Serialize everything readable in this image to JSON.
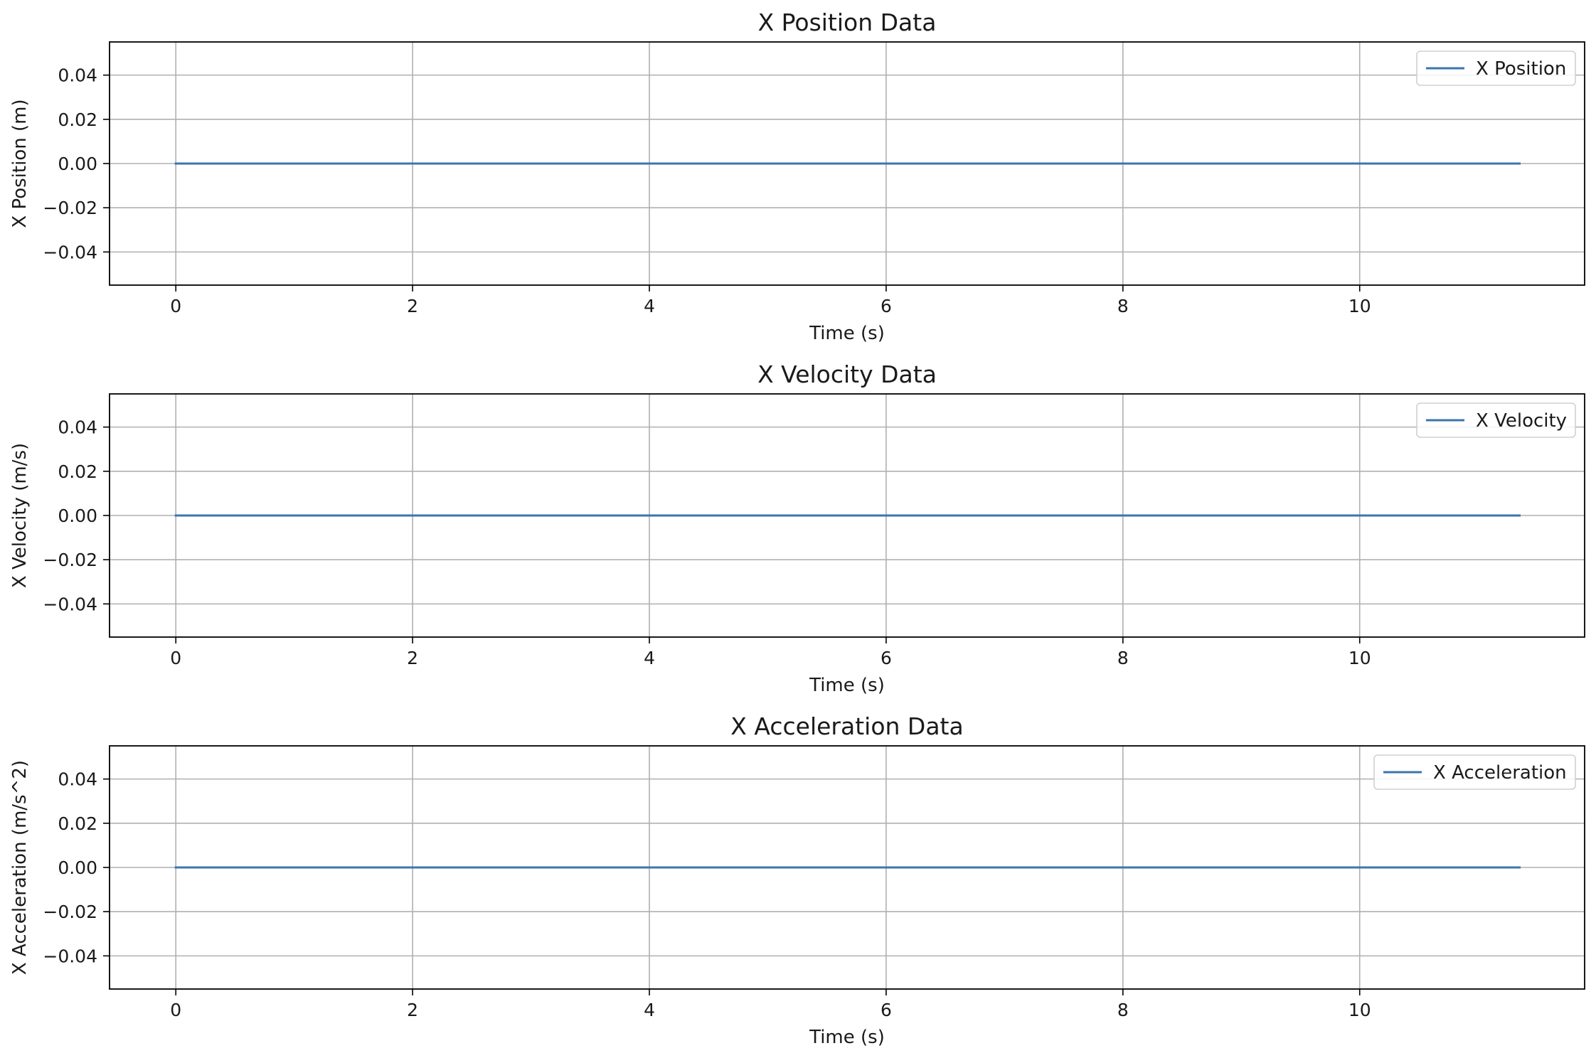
{
  "chart_data": [
    {
      "type": "line",
      "title": "X Position Data",
      "xlabel": "Time (s)",
      "ylabel": "X Position (m)",
      "xlim": [
        -0.56,
        11.9
      ],
      "ylim": [
        -0.055,
        0.055
      ],
      "xticks": [
        0,
        2,
        4,
        6,
        8,
        10
      ],
      "xtick_labels": [
        "0",
        "2",
        "4",
        "6",
        "8",
        "10"
      ],
      "yticks": [
        0.04,
        0.02,
        0.0,
        -0.02,
        -0.04
      ],
      "ytick_labels": [
        "0.04",
        "0.02",
        "0.00",
        "−0.02",
        "−0.04"
      ],
      "grid": true,
      "legend_position": "top-right",
      "series": [
        {
          "name": "X Position",
          "color": "#3b75af",
          "x": [
            0,
            11.35
          ],
          "y": [
            0,
            0
          ]
        }
      ]
    },
    {
      "type": "line",
      "title": "X Velocity Data",
      "xlabel": "Time (s)",
      "ylabel": "X Velocity (m/s)",
      "xlim": [
        -0.56,
        11.9
      ],
      "ylim": [
        -0.055,
        0.055
      ],
      "xticks": [
        0,
        2,
        4,
        6,
        8,
        10
      ],
      "xtick_labels": [
        "0",
        "2",
        "4",
        "6",
        "8",
        "10"
      ],
      "yticks": [
        0.04,
        0.02,
        0.0,
        -0.02,
        -0.04
      ],
      "ytick_labels": [
        "0.04",
        "0.02",
        "0.00",
        "−0.02",
        "−0.04"
      ],
      "grid": true,
      "legend_position": "top-right",
      "series": [
        {
          "name": "X Velocity",
          "color": "#3b75af",
          "x": [
            0,
            11.35
          ],
          "y": [
            0,
            0
          ]
        }
      ]
    },
    {
      "type": "line",
      "title": "X Acceleration Data",
      "xlabel": "Time (s)",
      "ylabel": "X Acceleration (m/s^2)",
      "xlim": [
        -0.56,
        11.9
      ],
      "ylim": [
        -0.055,
        0.055
      ],
      "xticks": [
        0,
        2,
        4,
        6,
        8,
        10
      ],
      "xtick_labels": [
        "0",
        "2",
        "4",
        "6",
        "8",
        "10"
      ],
      "yticks": [
        0.04,
        0.02,
        0.0,
        -0.02,
        -0.04
      ],
      "ytick_labels": [
        "0.04",
        "0.02",
        "0.00",
        "−0.02",
        "−0.04"
      ],
      "grid": true,
      "legend_position": "top-right",
      "series": [
        {
          "name": "X Acceleration",
          "color": "#3b75af",
          "x": [
            0,
            11.35
          ],
          "y": [
            0,
            0
          ]
        }
      ]
    }
  ]
}
